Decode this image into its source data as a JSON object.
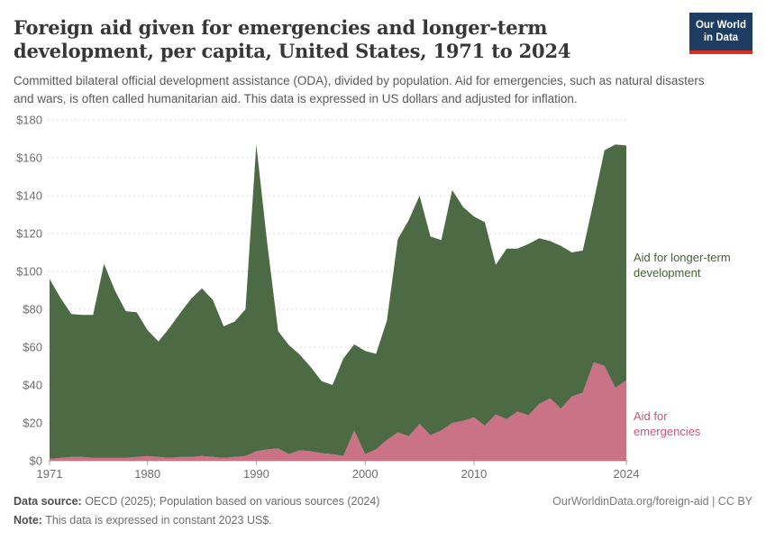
{
  "header": {
    "title": "Foreign aid given for emergencies and longer-term development, per capita, United States, 1971 to 2024",
    "subtitle": "Committed bilateral official development assistance (ODA), divided by population. Aid for emergencies, such as natural disasters and wars, is often called humanitarian aid. This data is expressed in US dollars and adjusted for inflation.",
    "logo": {
      "line1": "Our World",
      "line2": "in Data",
      "bg_color": "#1d3d63",
      "bar_color": "#dc2f1e"
    }
  },
  "chart_data": {
    "type": "area",
    "stacked": true,
    "title": "Foreign aid given for emergencies and longer-term development, per capita, United States",
    "xlabel": "",
    "ylabel": "",
    "ylim": [
      0,
      180
    ],
    "grid": "dashed-horizontal",
    "legend_position": "right-inline-labels",
    "x": [
      1971,
      1972,
      1973,
      1974,
      1975,
      1976,
      1977,
      1978,
      1979,
      1980,
      1981,
      1982,
      1983,
      1984,
      1985,
      1986,
      1987,
      1988,
      1989,
      1990,
      1991,
      1992,
      1993,
      1994,
      1995,
      1996,
      1997,
      1998,
      1999,
      2000,
      2001,
      2002,
      2003,
      2004,
      2005,
      2006,
      2007,
      2008,
      2009,
      2010,
      2011,
      2012,
      2013,
      2014,
      2015,
      2016,
      2017,
      2018,
      2019,
      2020,
      2021,
      2022,
      2023,
      2024
    ],
    "series": [
      {
        "name": "Aid for emergencies",
        "color": "#ca7286",
        "label_color": "#c25a78",
        "values": [
          1.0,
          1.5,
          2.0,
          2.0,
          1.5,
          1.5,
          1.5,
          1.5,
          2.0,
          2.5,
          2.0,
          1.5,
          2.0,
          2.0,
          2.5,
          2.0,
          1.5,
          2.0,
          2.5,
          5.0,
          6.0,
          6.5,
          3.5,
          5.5,
          5.0,
          4.0,
          3.5,
          2.5,
          16.0,
          3.5,
          6.0,
          11.0,
          15.0,
          13.0,
          19.5,
          13.5,
          16.0,
          20.0,
          21.0,
          23.0,
          18.5,
          24.5,
          22.0,
          26.0,
          24.0,
          30.0,
          33.0,
          27.5,
          34.0,
          36.0,
          52.0,
          50.0,
          38.5,
          42.5
        ]
      },
      {
        "name": "Aid for longer-term development",
        "color": "#4c6a43",
        "label_color": "#476239",
        "values": [
          95.0,
          84.5,
          75.5,
          75.0,
          75.5,
          102.5,
          88.5,
          77.5,
          76.5,
          66.5,
          61.0,
          68.5,
          76.0,
          83.5,
          88.5,
          83.0,
          69.5,
          71.5,
          77.5,
          162.0,
          109.0,
          62.0,
          57.5,
          50.5,
          44.5,
          38.0,
          36.5,
          51.5,
          45.5,
          54.5,
          50.5,
          63.0,
          102.0,
          114.0,
          120.5,
          105.0,
          100.5,
          123.0,
          113.0,
          106.0,
          107.5,
          79.0,
          90.0,
          86.0,
          90.5,
          87.5,
          83.0,
          86.0,
          76.0,
          75.0,
          85.0,
          114.0,
          128.5,
          124.0
        ]
      }
    ],
    "ytick_values": [
      0,
      20,
      40,
      60,
      80,
      100,
      120,
      140,
      160,
      180
    ],
    "ytick_labels": [
      "$0",
      "$20",
      "$40",
      "$60",
      "$80",
      "$100",
      "$120",
      "$140",
      "$160",
      "$180"
    ],
    "xtick_values": [
      1971,
      1980,
      1990,
      2000,
      2010,
      2024
    ],
    "xtick_labels": [
      "1971",
      "1980",
      "1990",
      "2000",
      "2010",
      "2024"
    ]
  },
  "annotations": {
    "development_label_line1": "Aid for longer-term",
    "development_label_line2": "development",
    "emergencies_label_line1": "Aid for",
    "emergencies_label_line2": "emergencies"
  },
  "footer": {
    "source_prefix": "Data source:",
    "source_text": " OECD (2025); Population based on various sources (2024)",
    "note_prefix": "Note:",
    "note_text": " This data is expressed in constant 2023 US$.",
    "link_text": "OurWorldinData.org/foreign-aid | CC BY"
  }
}
